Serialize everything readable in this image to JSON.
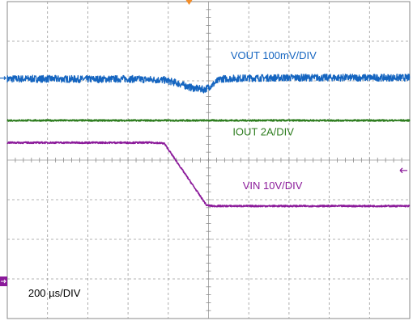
{
  "chart_data": {
    "type": "line",
    "title": "",
    "xlabel": "",
    "ylabel": "",
    "grid": true,
    "x_divisions": 10,
    "y_divisions": 8,
    "x_unit": "div",
    "y_unit": "div",
    "xlim": [
      0,
      10
    ],
    "ylim": [
      0,
      8
    ],
    "timebase_label": "200 µs/DIV",
    "trigger_marker_x": 8.8,
    "series": [
      {
        "name": "VOUT 100mV/DIV",
        "color": "#1565c0",
        "style": "noisy",
        "x": [
          0,
          1,
          2,
          3,
          3.9,
          4.2,
          4.6,
          4.9,
          5.1,
          5.3,
          6,
          7,
          8,
          9,
          10
        ],
        "y": [
          6.05,
          6.05,
          6.04,
          6.05,
          6.02,
          5.95,
          5.82,
          5.78,
          5.9,
          6.05,
          6.07,
          6.08,
          6.08,
          6.08,
          6.08
        ]
      },
      {
        "name": "IOUT 2A/DIV",
        "color": "#2e7d1f",
        "style": "noisy",
        "x": [
          0,
          10
        ],
        "y": [
          5.0,
          5.0
        ]
      },
      {
        "name": "VIN 10V/DIV",
        "color": "#8b1a9a",
        "style": "noisy",
        "x": [
          0,
          3.65,
          3.9,
          4.95,
          5.1,
          10
        ],
        "y": [
          4.44,
          4.44,
          4.42,
          2.86,
          2.84,
          2.84
        ]
      }
    ],
    "annotations": [
      {
        "text": "VOUT 100mV/DIV",
        "color": "#1565c0",
        "x": 5.55,
        "y": 6.55
      },
      {
        "text": "IOUT 2A/DIV",
        "color": "#2e7d1f",
        "x": 5.6,
        "y": 4.62
      },
      {
        "text": "VIN 10V/DIV",
        "color": "#8b1a9a",
        "x": 5.85,
        "y": 3.27
      },
      {
        "text": "200 µs/DIV",
        "color": "#000000",
        "x": 0.52,
        "y": 0.55
      }
    ]
  }
}
